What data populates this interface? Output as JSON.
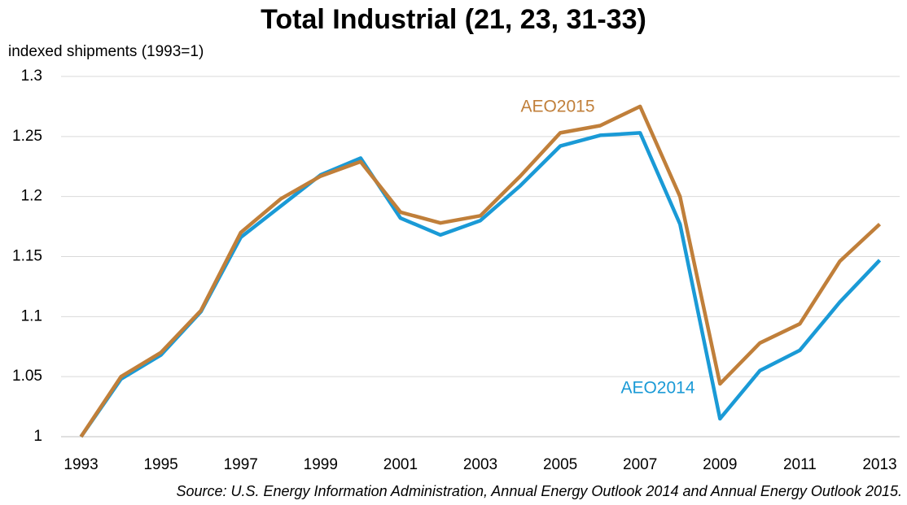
{
  "chart_data": {
    "type": "line",
    "title": "Total Industrial (21, 23, 31-33)",
    "y_label": "indexed shipments (1993=1)",
    "source": "Source: U.S. Energy Information Administration, Annual Energy Outlook 2014 and  Annual Energy Outlook 2015.",
    "categories": [
      "1993",
      null,
      "1995",
      null,
      "1997",
      null,
      "1999",
      null,
      "2001",
      null,
      "2003",
      null,
      "2005",
      null,
      "2007",
      null,
      "2009",
      null,
      "2011",
      null,
      "2013"
    ],
    "series": [
      {
        "name": "AEO2014",
        "color": "#1a9ad6",
        "values": [
          1.0,
          1.048,
          1.068,
          1.104,
          1.166,
          1.192,
          1.218,
          1.232,
          1.182,
          1.168,
          1.18,
          1.209,
          1.242,
          1.251,
          1.253,
          1.177,
          1.015,
          1.055,
          1.072,
          1.112,
          1.147
        ]
      },
      {
        "name": "AEO2015",
        "color": "#c07f3a",
        "values": [
          1.0,
          1.05,
          1.07,
          1.105,
          1.17,
          1.198,
          1.217,
          1.229,
          1.187,
          1.178,
          1.184,
          1.217,
          1.253,
          1.259,
          1.275,
          1.2,
          1.044,
          1.078,
          1.094,
          1.146,
          1.177
        ]
      }
    ],
    "ylim": [
      1,
      1.3
    ],
    "yticks": [
      1,
      1.05,
      1.1,
      1.15,
      1.2,
      1.25,
      1.3
    ],
    "grid": true
  }
}
